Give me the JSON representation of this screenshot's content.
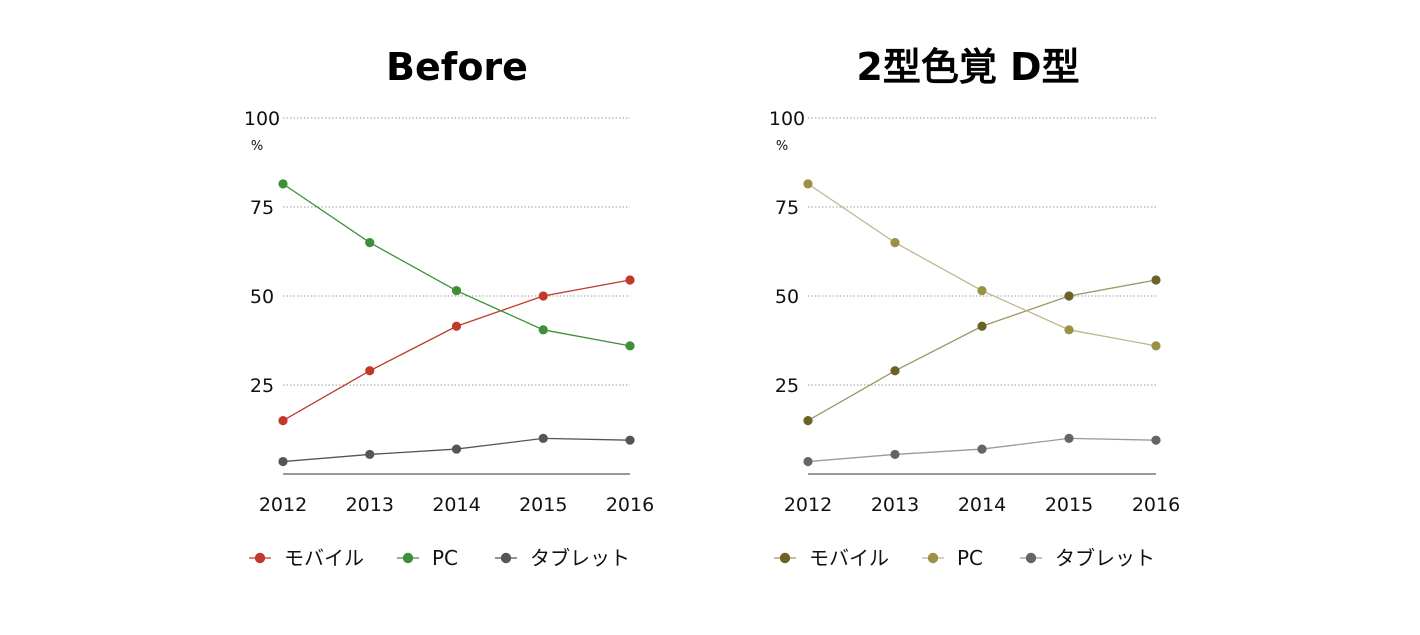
{
  "chart_data": [
    {
      "type": "line",
      "title": "Before",
      "unit": "%",
      "x": [
        "2012",
        "2013",
        "2014",
        "2015",
        "2016"
      ],
      "ylim": [
        0,
        100
      ],
      "yticks": [
        25,
        50,
        75,
        100
      ],
      "grid": true,
      "legend_position": "bottom",
      "series": [
        {
          "name": "モバイル",
          "color": "#c0392b",
          "values": [
            15,
            29,
            41.5,
            50,
            54.5
          ]
        },
        {
          "name": "PC",
          "color": "#3f8f3a",
          "values": [
            81.5,
            65,
            51.5,
            40.5,
            36
          ]
        },
        {
          "name": "タブレット",
          "color": "#555559",
          "values": [
            3.5,
            5.5,
            7,
            10,
            9.5
          ]
        }
      ]
    },
    {
      "type": "line",
      "title": "2型色覚 D型",
      "unit": "%",
      "x": [
        "2012",
        "2013",
        "2014",
        "2015",
        "2016"
      ],
      "ylim": [
        0,
        100
      ],
      "yticks": [
        25,
        50,
        75,
        100
      ],
      "grid": true,
      "legend_position": "bottom",
      "series": [
        {
          "name": "モバイル",
          "color": "#6b6227",
          "line_color": "#9d9667",
          "values": [
            15,
            29,
            41.5,
            50,
            54.5
          ]
        },
        {
          "name": "PC",
          "color": "#9a9144",
          "line_color": "#bcb78e",
          "values": [
            81.5,
            65,
            51.5,
            40.5,
            36
          ]
        },
        {
          "name": "タブレット",
          "color": "#64646a",
          "line_color": "#9a9a9e",
          "values": [
            3.5,
            5.5,
            7,
            10,
            9.5
          ]
        }
      ]
    }
  ]
}
